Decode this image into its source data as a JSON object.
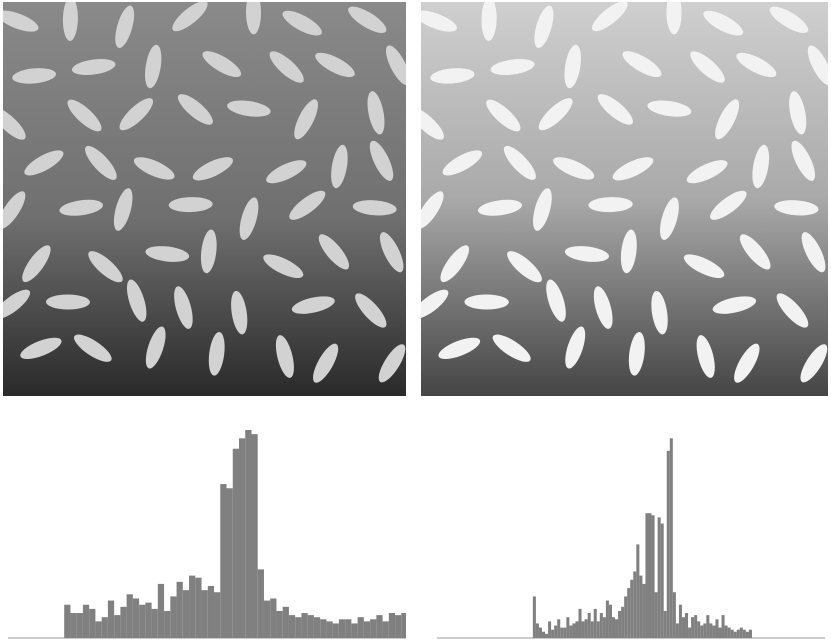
{
  "colors": {
    "bar": "#808080",
    "axis": "#9a9a9a",
    "grain_original": "#d2d2d2",
    "grain_equalized": "#f2f2f2"
  },
  "images": [
    {
      "name": "original-rice-image",
      "tone": "dark"
    },
    {
      "name": "equalized-rice-image",
      "tone": "bright"
    }
  ],
  "chart_data": [
    {
      "type": "bar",
      "title": "",
      "xlabel": "",
      "ylabel": "",
      "grid": false,
      "xlim": [
        0,
        255
      ],
      "ylim": [
        0,
        1
      ],
      "series": [
        {
          "x_start": 36,
          "bin_width": 4,
          "values": [
            0.16,
            0.12,
            0.12,
            0.16,
            0.14,
            0.08,
            0.1,
            0.18,
            0.11,
            0.15,
            0.21,
            0.19,
            0.16,
            0.17,
            0.14,
            0.26,
            0.13,
            0.2,
            0.27,
            0.23,
            0.3,
            0.29,
            0.23,
            0.25,
            0.22,
            0.74,
            0.72,
            0.91,
            0.96,
            1.0,
            0.98,
            0.33,
            0.18,
            0.19,
            0.13,
            0.15,
            0.11,
            0.1,
            0.12,
            0.11,
            0.1,
            0.09,
            0.08,
            0.07,
            0.09,
            0.09,
            0.07,
            0.1,
            0.08,
            0.09,
            0.11,
            0.08,
            0.12,
            0.11,
            0.12,
            0.09,
            0.1,
            0.13,
            0.14,
            0.12,
            0.1,
            0.14,
            0.15,
            0.11,
            0.11,
            0.16,
            0.14,
            0.13,
            0.15,
            0.16,
            0.16,
            0.14,
            0.12,
            0.16,
            0.16,
            0.13,
            0.1,
            0.11,
            0.08,
            0.07,
            0.06,
            0.05,
            0.05,
            0.04,
            0.04,
            0.04,
            0.03,
            0.03,
            0.03,
            0.03,
            0.03,
            0.02,
            0.02,
            0.02,
            0.01,
            0.02,
            0.01
          ]
        }
      ]
    },
    {
      "type": "bar",
      "title": "",
      "xlabel": "",
      "ylabel": "",
      "grid": false,
      "xlim": [
        0,
        255
      ],
      "ylim": [
        0,
        1
      ],
      "series": [
        {
          "x_start": 63,
          "bin_width": 2,
          "values": [
            0.2,
            0.07,
            0.05,
            0.03,
            0.02,
            0.08,
            0.04,
            0.06,
            0.09,
            0.05,
            0.05,
            0.1,
            0.06,
            0.07,
            0.08,
            0.14,
            0.08,
            0.09,
            0.12,
            0.08,
            0.14,
            0.08,
            0.12,
            0.1,
            0.18,
            0.16,
            0.1,
            0.09,
            0.13,
            0.15,
            0.2,
            0.24,
            0.28,
            0.32,
            0.45,
            0.3,
            0.26,
            0.6,
            0.6,
            0.59,
            0.22,
            0.58,
            0.55,
            0.13,
            0.9,
            0.96,
            0.22,
            0.07,
            0.16,
            0.1,
            0.12,
            0.05,
            0.1,
            0.11,
            0.08,
            0.06,
            0.07,
            0.11,
            0.07,
            0.06,
            0.09,
            0.05,
            0.11,
            0.06,
            0.05,
            0.04,
            0.03,
            0.04,
            0.05,
            0.04,
            0.03,
            0.04
          ]
        }
      ]
    }
  ]
}
